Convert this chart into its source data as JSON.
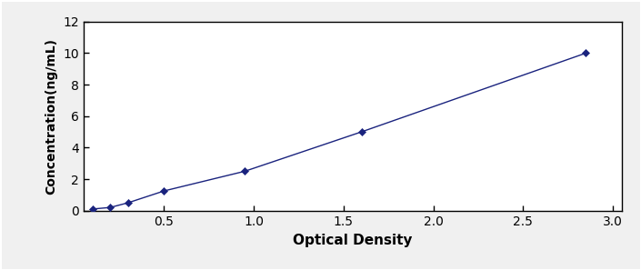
{
  "x": [
    0.1,
    0.2,
    0.3,
    0.5,
    0.95,
    1.6,
    2.85
  ],
  "y": [
    0.1,
    0.2,
    0.5,
    1.25,
    2.5,
    5.0,
    10.0
  ],
  "line_color": "#1a237e",
  "marker": "D",
  "marker_color": "#1a237e",
  "marker_size": 4,
  "linewidth": 1.0,
  "linestyle": "-",
  "xlabel": "Optical Density",
  "ylabel": "Concentration(ng/mL)",
  "xlim": [
    0.05,
    3.05
  ],
  "ylim": [
    0,
    12
  ],
  "xticks": [
    0.5,
    1.0,
    1.5,
    2.0,
    2.5,
    3.0
  ],
  "yticks": [
    0,
    2,
    4,
    6,
    8,
    10,
    12
  ],
  "xlabel_fontsize": 11,
  "ylabel_fontsize": 10,
  "tick_fontsize": 10,
  "background_color": "#ffffff",
  "figure_background": "#f0f0f0",
  "border_color": "#000000"
}
